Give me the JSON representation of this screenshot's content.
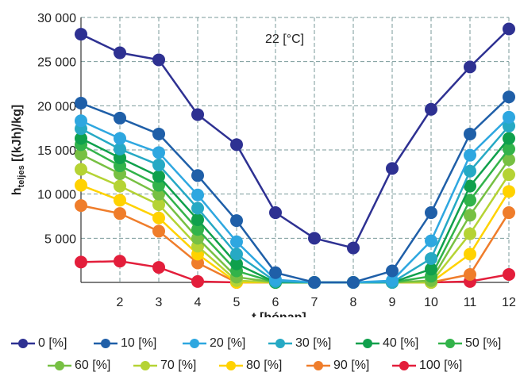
{
  "chart_data": {
    "type": "line",
    "title": "",
    "annotation": "22 [°C]",
    "xlabel": "t [hónap]",
    "ylabel_main": "h",
    "ylabel_sub": "teljes",
    "ylabel_rest": " [(kJh)/kg]",
    "x": [
      1,
      2,
      3,
      4,
      5,
      6,
      7,
      8,
      9,
      10,
      11,
      12
    ],
    "x_tick_labels": [
      "2",
      "3",
      "4",
      "5",
      "6",
      "7",
      "8",
      "9",
      "10",
      "11",
      "12"
    ],
    "y_tick_labels": [
      "5 000",
      "10 000",
      "15 000",
      "20 000",
      "25 000",
      "30 000"
    ],
    "xlim": [
      1,
      12
    ],
    "ylim": [
      0,
      30000
    ],
    "grid": true,
    "legend_position": "bottom",
    "series": [
      {
        "name": "0 [%]",
        "color": "#2e3192",
        "values": [
          28100,
          26000,
          25200,
          19000,
          15600,
          7900,
          5000,
          3900,
          12900,
          19600,
          24400,
          28700
        ]
      },
      {
        "name": "10 [%]",
        "color": "#1f5fa8",
        "values": [
          20300,
          18600,
          16800,
          12100,
          7000,
          1100,
          0,
          0,
          1300,
          7900,
          16800,
          21000
        ]
      },
      {
        "name": "20 [%]",
        "color": "#2ea7e0",
        "values": [
          18300,
          16300,
          14700,
          9900,
          4600,
          300,
          0,
          0,
          200,
          4700,
          14400,
          18700
        ]
      },
      {
        "name": "30 [%]",
        "color": "#26a9c4",
        "values": [
          17400,
          15100,
          13300,
          8400,
          3200,
          100,
          0,
          0,
          0,
          2700,
          12600,
          17700
        ]
      },
      {
        "name": "40 [%]",
        "color": "#0fa04c",
        "values": [
          16300,
          14100,
          12000,
          7100,
          2100,
          0,
          0,
          0,
          0,
          1500,
          10900,
          16300
        ]
      },
      {
        "name": "50 [%]",
        "color": "#32b34a",
        "values": [
          15600,
          13200,
          11000,
          6000,
          1300,
          0,
          0,
          0,
          0,
          700,
          9300,
          15100
        ]
      },
      {
        "name": "60 [%]",
        "color": "#77c043",
        "values": [
          14500,
          12300,
          10000,
          5000,
          600,
          0,
          0,
          0,
          0,
          200,
          7600,
          13900
        ]
      },
      {
        "name": "70 [%]",
        "color": "#b5d334",
        "values": [
          12800,
          10900,
          8800,
          4100,
          200,
          0,
          0,
          0,
          0,
          0,
          5500,
          12200
        ]
      },
      {
        "name": "80 [%]",
        "color": "#ffd200",
        "values": [
          11000,
          9300,
          7300,
          3200,
          0,
          0,
          0,
          0,
          0,
          0,
          3200,
          10300
        ]
      },
      {
        "name": "90 [%]",
        "color": "#ef7d2b",
        "values": [
          8700,
          7800,
          5800,
          2200,
          0,
          0,
          0,
          0,
          0,
          0,
          900,
          7900
        ]
      },
      {
        "name": "100 [%]",
        "color": "#e31e3b",
        "values": [
          2300,
          2400,
          1700,
          100,
          0,
          0,
          0,
          0,
          0,
          0,
          100,
          900
        ]
      }
    ]
  }
}
